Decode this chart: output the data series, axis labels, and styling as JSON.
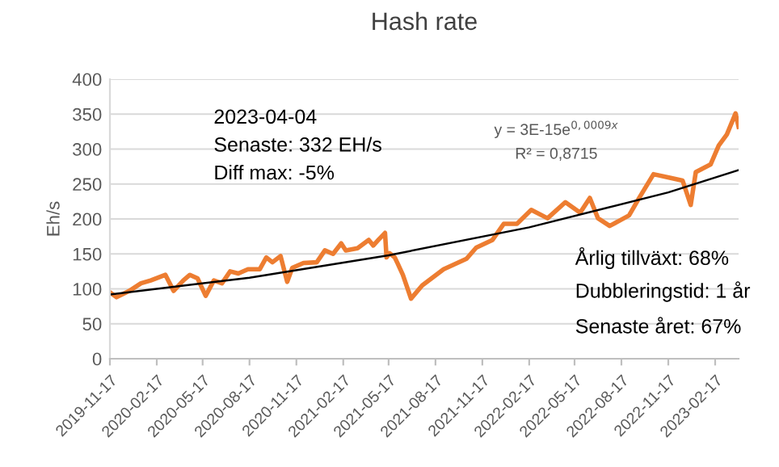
{
  "chart_data": {
    "type": "line",
    "title": "Hash rate",
    "ylabel": "Eh/s",
    "series": [
      {
        "color": "#ed7d31",
        "x": [
          "2019-11-17",
          "2019-11-30",
          "2019-12-25",
          "2020-01-17",
          "2020-02-05",
          "2020-03-05",
          "2020-03-21",
          "2020-04-09",
          "2020-04-22",
          "2020-05-07",
          "2020-05-23",
          "2020-06-08",
          "2020-06-24",
          "2020-07-10",
          "2020-07-26",
          "2020-08-14",
          "2020-09-06",
          "2020-09-19",
          "2020-10-01",
          "2020-10-17",
          "2020-10-30",
          "2020-11-09",
          "2020-12-01",
          "2020-12-27",
          "2021-01-12",
          "2021-01-28",
          "2021-02-13",
          "2021-02-22",
          "2021-03-17",
          "2021-04-08",
          "2021-04-17",
          "2021-04-27",
          "2021-05-10",
          "2021-05-13",
          "2021-05-19",
          "2021-05-29",
          "2021-06-04",
          "2021-06-14",
          "2021-06-30",
          "2021-07-22",
          "2021-09-02",
          "2021-10-17",
          "2021-11-05",
          "2021-12-07",
          "2021-12-29",
          "2022-01-24",
          "2022-02-21",
          "2022-03-25",
          "2022-04-29",
          "2022-05-28",
          "2022-06-16",
          "2022-07-02",
          "2022-07-25",
          "2022-09-01",
          "2022-09-20",
          "2022-10-19",
          "2022-11-20",
          "2022-12-15",
          "2022-12-31",
          "2023-01-10",
          "2023-02-08",
          "2023-02-24",
          "2023-03-12",
          "2023-03-29",
          "2023-04-04"
        ],
        "values": [
          95,
          88,
          97,
          108,
          112,
          120,
          97,
          112,
          120,
          115,
          90,
          112,
          108,
          125,
          122,
          128,
          128,
          145,
          138,
          147,
          110,
          130,
          137,
          138,
          155,
          150,
          165,
          155,
          158,
          170,
          162,
          170,
          180,
          145,
          151,
          145,
          136,
          120,
          86,
          105,
          128,
          143,
          159,
          170,
          193,
          193,
          213,
          201,
          224,
          209,
          230,
          201,
          190,
          205,
          229,
          264,
          259,
          255,
          220,
          267,
          278,
          305,
          321,
          351,
          332
        ]
      },
      {
        "color": "#000000",
        "x": [
          "2019-11-17",
          "2020-08-17",
          "2021-05-17",
          "2022-02-17",
          "2022-11-17",
          "2023-04-04"
        ],
        "values": [
          92,
          116,
          148,
          188,
          238,
          270
        ]
      }
    ],
    "xlim": [
      "2019-11-17",
      "2023-04-04"
    ],
    "xticks": [
      "2019-11-17",
      "2020-02-17",
      "2020-05-17",
      "2020-08-17",
      "2020-11-17",
      "2021-02-17",
      "2021-05-17",
      "2021-08-17",
      "2021-11-17",
      "2022-02-17",
      "2022-05-17",
      "2022-08-17",
      "2022-11-17",
      "2023-02-17"
    ],
    "ylim": [
      0,
      400
    ],
    "yticks": [
      0,
      50,
      100,
      150,
      200,
      250,
      300,
      350,
      400
    ],
    "grid": "y",
    "annotations": [
      "2023-04-04",
      "Senaste: 332 EH/s",
      "Diff max: -5%",
      "y = 3E-15e$^{0,0009x}$",
      "R² = 0,8715",
      "Årlig tillväxt: 68%",
      "Dubbleringstid: 1 år",
      "Senaste året: 67%"
    ]
  }
}
